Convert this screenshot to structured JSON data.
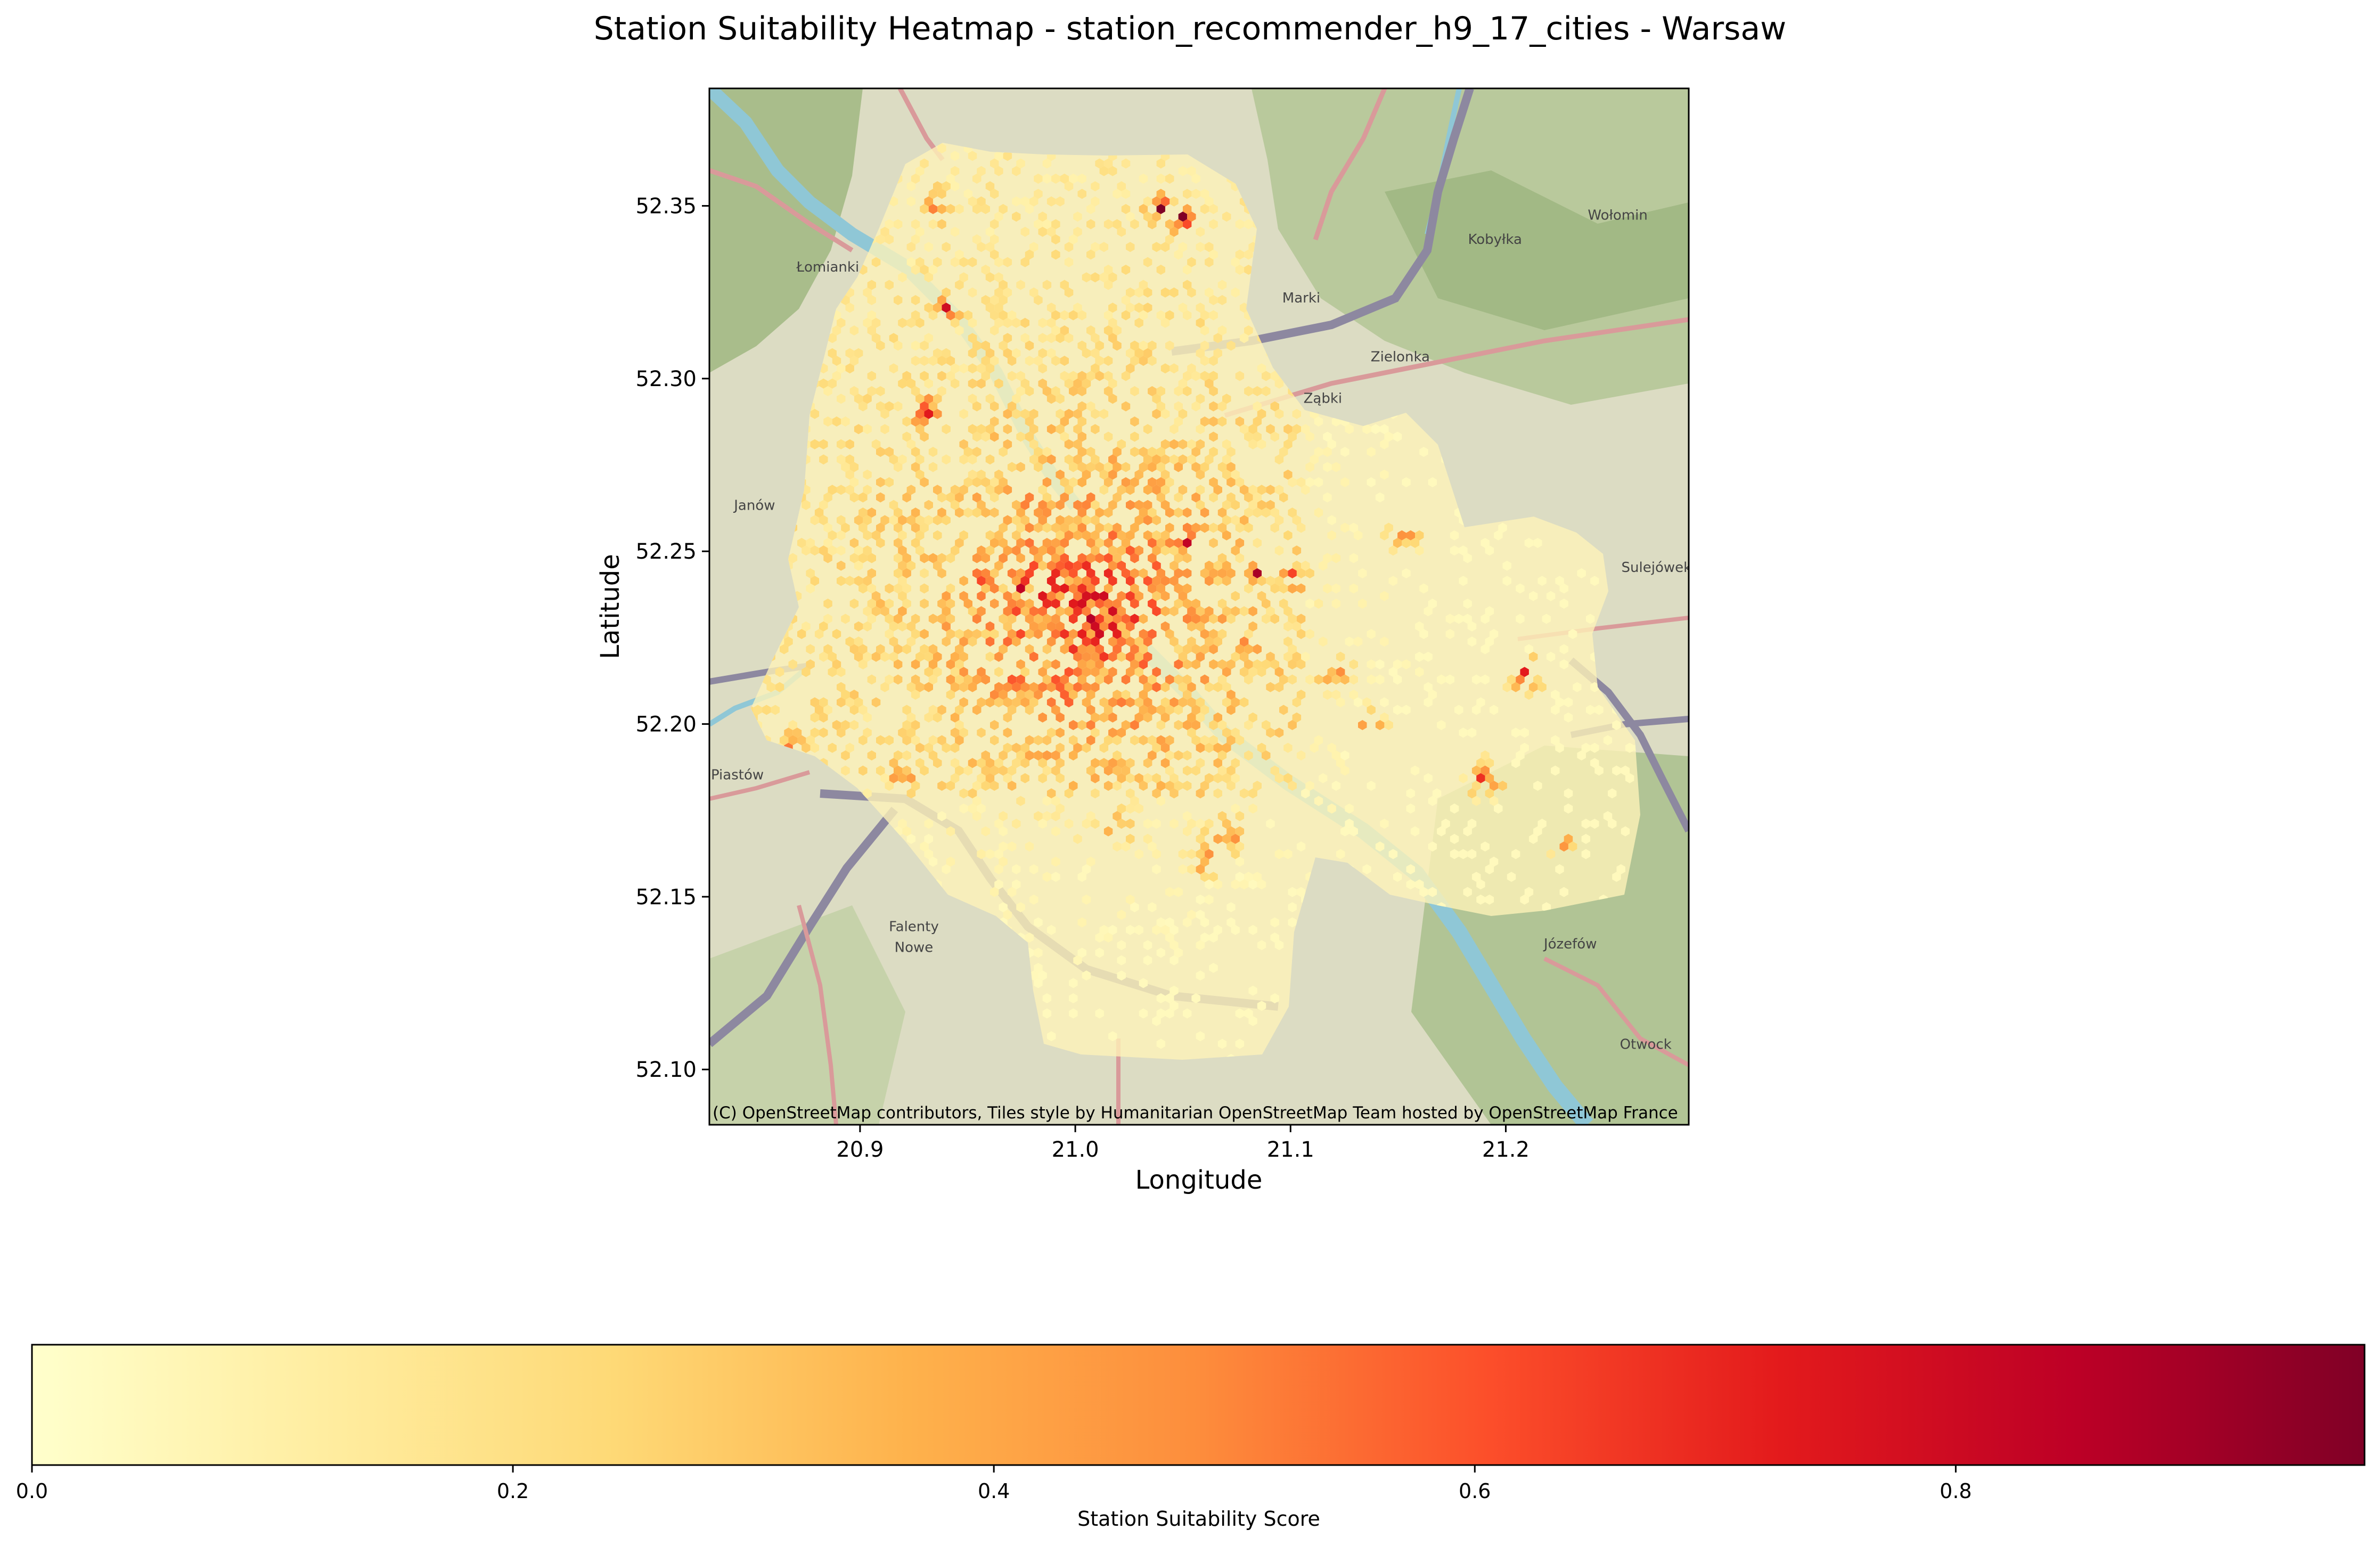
{
  "chart_data": {
    "type": "heatmap",
    "title": "Station Suitability Heatmap - station_recommender_h9_17_cities - Warsaw",
    "xlabel": "Longitude",
    "ylabel": "Latitude",
    "xlim": [
      20.83,
      21.285
    ],
    "ylim": [
      52.084,
      52.384
    ],
    "xticks": [
      {
        "value": 20.9,
        "label": "20.9"
      },
      {
        "value": 21.0,
        "label": "21.0"
      },
      {
        "value": 21.1,
        "label": "21.1"
      },
      {
        "value": 21.2,
        "label": "21.2"
      }
    ],
    "yticks": [
      {
        "value": 52.1,
        "label": "52.10"
      },
      {
        "value": 52.15,
        "label": "52.15"
      },
      {
        "value": 52.2,
        "label": "52.20"
      },
      {
        "value": 52.25,
        "label": "52.25"
      },
      {
        "value": 52.3,
        "label": "52.30"
      },
      {
        "value": 52.35,
        "label": "52.35"
      }
    ],
    "attribution": "(C) OpenStreetMap contributors, Tiles style by Humanitarian OpenStreetMap Team hosted by OpenStreetMap France",
    "colorbar": {
      "label": "Station Suitability Score",
      "colormap": "YlOrRd",
      "range": [
        0.0,
        0.97
      ],
      "ticks": [
        {
          "value": 0.0,
          "label": "0.0"
        },
        {
          "value": 0.2,
          "label": "0.2"
        },
        {
          "value": 0.4,
          "label": "0.4"
        },
        {
          "value": 0.6,
          "label": "0.6"
        },
        {
          "value": 0.8,
          "label": "0.8"
        }
      ]
    },
    "map_places": [
      {
        "name": "Łomianki",
        "lon": 20.885,
        "lat": 52.331
      },
      {
        "name": "Marki",
        "lon": 21.105,
        "lat": 52.322
      },
      {
        "name": "Kobyłka",
        "lon": 21.195,
        "lat": 52.339
      },
      {
        "name": "Wołomin",
        "lon": 21.252,
        "lat": 52.346
      },
      {
        "name": "Zielonka",
        "lon": 21.151,
        "lat": 52.305
      },
      {
        "name": "Ząbki",
        "lon": 21.115,
        "lat": 52.293
      },
      {
        "name": "Janów",
        "lon": 20.851,
        "lat": 52.262
      },
      {
        "name": "Sulejówek",
        "lon": 21.27,
        "lat": 52.244
      },
      {
        "name": "Piastów",
        "lon": 20.843,
        "lat": 52.184
      },
      {
        "name": "Falenty",
        "lon": 20.925,
        "lat": 52.14
      },
      {
        "name": "Nowe",
        "lon": 20.925,
        "lat": 52.134
      },
      {
        "name": "Józefów",
        "lon": 21.23,
        "lat": 52.135
      },
      {
        "name": "Otwock",
        "lon": 21.265,
        "lat": 52.106
      }
    ],
    "hotspots": [
      {
        "lon": 21.0,
        "lat": 52.232,
        "score": 0.97
      },
      {
        "lon": 20.985,
        "lat": 52.236,
        "score": 0.85
      },
      {
        "lon": 21.01,
        "lat": 52.228,
        "score": 0.9
      },
      {
        "lon": 20.995,
        "lat": 52.226,
        "score": 0.8
      },
      {
        "lon": 20.975,
        "lat": 52.24,
        "score": 0.75
      },
      {
        "lon": 20.93,
        "lat": 52.291,
        "score": 0.88
      },
      {
        "lon": 21.05,
        "lat": 52.253,
        "score": 0.85
      },
      {
        "lon": 21.084,
        "lat": 52.245,
        "score": 0.88
      },
      {
        "lon": 21.1,
        "lat": 52.243,
        "score": 0.82
      },
      {
        "lon": 21.05,
        "lat": 52.347,
        "score": 0.8
      },
      {
        "lon": 21.04,
        "lat": 52.349,
        "score": 0.7
      },
      {
        "lon": 20.935,
        "lat": 52.35,
        "score": 0.72
      },
      {
        "lon": 21.21,
        "lat": 52.214,
        "score": 0.7
      },
      {
        "lon": 21.19,
        "lat": 52.184,
        "score": 0.72
      },
      {
        "lon": 21.07,
        "lat": 52.168,
        "score": 0.7
      },
      {
        "lon": 20.978,
        "lat": 52.263,
        "score": 0.7
      },
      {
        "lon": 21.02,
        "lat": 52.262,
        "score": 0.68
      },
      {
        "lon": 20.955,
        "lat": 52.243,
        "score": 0.65
      },
      {
        "lon": 20.97,
        "lat": 52.213,
        "score": 0.6
      },
      {
        "lon": 21.03,
        "lat": 52.2,
        "score": 0.6
      },
      {
        "lon": 20.87,
        "lat": 52.194,
        "score": 0.62
      },
      {
        "lon": 21.06,
        "lat": 52.161,
        "score": 0.65
      },
      {
        "lon": 20.92,
        "lat": 52.186,
        "score": 0.6
      },
      {
        "lon": 21.12,
        "lat": 52.215,
        "score": 0.6
      },
      {
        "lon": 21.137,
        "lat": 52.2,
        "score": 0.55
      },
      {
        "lon": 21.152,
        "lat": 52.255,
        "score": 0.58
      },
      {
        "lon": 21.08,
        "lat": 52.222,
        "score": 0.55
      },
      {
        "lon": 21.02,
        "lat": 52.17,
        "score": 0.6
      },
      {
        "lon": 20.91,
        "lat": 52.263,
        "score": 0.6
      },
      {
        "lon": 20.94,
        "lat": 52.32,
        "score": 0.6
      },
      {
        "lon": 20.98,
        "lat": 52.182,
        "score": 0.55
      },
      {
        "lon": 21.0,
        "lat": 52.2,
        "score": 0.55
      },
      {
        "lon": 21.225,
        "lat": 52.165,
        "score": 0.6
      }
    ]
  }
}
